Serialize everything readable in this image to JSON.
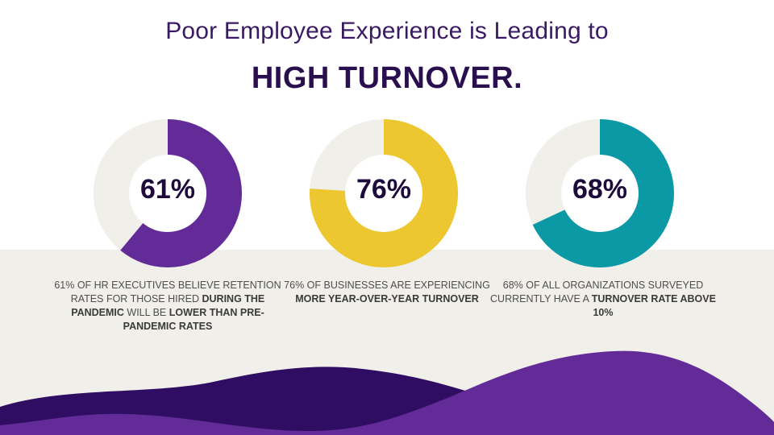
{
  "header": {
    "subtitle": "Poor Employee Experience is Leading to",
    "headline": "HIGH TURNOVER."
  },
  "colors": {
    "purple": "#622b98",
    "yellow": "#ecc72f",
    "teal": "#0c99a6",
    "track": "#f1efea",
    "band": "#f1efea",
    "wave_dark": "#2f0d62",
    "wave_mid": "#622b98"
  },
  "chart_data": [
    {
      "type": "pie",
      "variant": "donut",
      "value_label": "61%",
      "values": [
        61,
        39
      ],
      "color": "#622b98",
      "caption": [
        {
          "text": "61% of HR executives believe retention rates for those hired ",
          "bold": false
        },
        {
          "text": "during the pandemic",
          "bold": true
        },
        {
          "text": " will be ",
          "bold": false
        },
        {
          "text": "lower than pre-pandemic rates",
          "bold": true
        }
      ]
    },
    {
      "type": "pie",
      "variant": "donut",
      "value_label": "76%",
      "values": [
        76,
        24
      ],
      "color": "#ecc72f",
      "caption": [
        {
          "text": "76% of businesses are experiencing ",
          "bold": false
        },
        {
          "text": "more year-over-year turnover",
          "bold": true
        }
      ]
    },
    {
      "type": "pie",
      "variant": "donut",
      "value_label": "68%",
      "values": [
        68,
        32
      ],
      "color": "#0c99a6",
      "caption": [
        {
          "text": "68% of all organizations surveyed currently have a ",
          "bold": false
        },
        {
          "text": "turnover rate above 10%",
          "bold": true
        }
      ]
    }
  ]
}
